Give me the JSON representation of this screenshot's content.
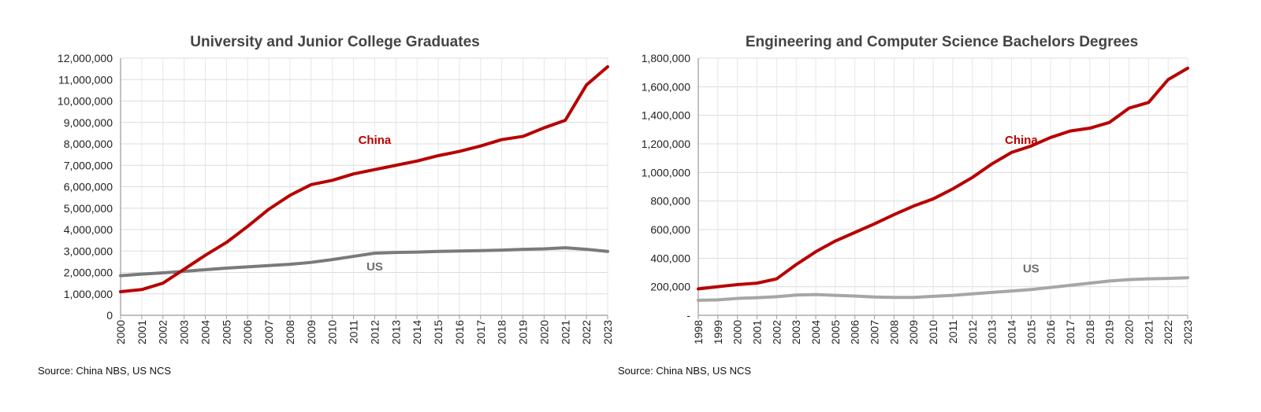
{
  "chart_data": [
    {
      "type": "line",
      "title": "University and Junior College Graduates",
      "xlabel": "",
      "ylabel": "",
      "ylim": [
        0,
        12000000
      ],
      "yticks": [
        "0",
        "1,000,000",
        "2,000,000",
        "3,000,000",
        "4,000,000",
        "5,000,000",
        "6,000,000",
        "7,000,000",
        "8,000,000",
        "9,000,000",
        "10,000,000",
        "11,000,000",
        "12,000,000"
      ],
      "x": [
        "2000",
        "2001",
        "2002",
        "2003",
        "2004",
        "2005",
        "2006",
        "2007",
        "2008",
        "2009",
        "2010",
        "2011",
        "2012",
        "2013",
        "2014",
        "2015",
        "2016",
        "2017",
        "2018",
        "2019",
        "2020",
        "2021",
        "2022",
        "2023"
      ],
      "grid": true,
      "series": [
        {
          "name": "China",
          "color": "#b80000",
          "values": [
            1100000,
            1200000,
            1500000,
            2150000,
            2800000,
            3400000,
            4150000,
            4950000,
            5600000,
            6100000,
            6300000,
            6600000,
            6800000,
            7000000,
            7200000,
            7450000,
            7650000,
            7900000,
            8200000,
            8350000,
            8750000,
            9100000,
            10750000,
            11600000
          ],
          "label_at": "2012",
          "label_value": 8000000
        },
        {
          "name": "US",
          "color": "#7a7a7a",
          "values": [
            1850000,
            1920000,
            1980000,
            2050000,
            2130000,
            2200000,
            2260000,
            2320000,
            2380000,
            2470000,
            2600000,
            2750000,
            2900000,
            2930000,
            2950000,
            2980000,
            3000000,
            3020000,
            3040000,
            3080000,
            3100000,
            3150000,
            3080000,
            2980000
          ],
          "label_at": "2012",
          "label_value": 2100000
        }
      ],
      "source": "Source: China NBS, US NCS"
    },
    {
      "type": "line",
      "title": "Engineering and Computer Science Bachelors Degrees",
      "xlabel": "",
      "ylabel": "",
      "ylim": [
        0,
        1800000
      ],
      "yticks": [
        "-",
        "200,000",
        "400,000",
        "600,000",
        "800,000",
        "1,000,000",
        "1,200,000",
        "1,400,000",
        "1,600,000",
        "1,800,000"
      ],
      "x": [
        "1998",
        "1999",
        "2000",
        "2001",
        "2002",
        "2003",
        "2004",
        "2005",
        "2006",
        "2007",
        "2008",
        "2009",
        "2010",
        "2011",
        "2012",
        "2013",
        "2014",
        "2015",
        "2016",
        "2017",
        "2018",
        "2019",
        "2020",
        "2021",
        "2022",
        "2023"
      ],
      "grid": true,
      "series": [
        {
          "name": "China",
          "color": "#b80000",
          "values": [
            185000,
            200000,
            215000,
            225000,
            255000,
            355000,
            445000,
            520000,
            580000,
            640000,
            705000,
            765000,
            815000,
            885000,
            965000,
            1060000,
            1140000,
            1185000,
            1245000,
            1290000,
            1310000,
            1350000,
            1450000,
            1490000,
            1650000,
            1730000
          ],
          "label_at": "2014.5",
          "label_value": 1200000
        },
        {
          "name": "US",
          "color": "#a6a6a6",
          "values": [
            105000,
            108000,
            118000,
            123000,
            130000,
            142000,
            145000,
            140000,
            135000,
            128000,
            125000,
            125000,
            133000,
            140000,
            150000,
            160000,
            170000,
            180000,
            195000,
            210000,
            225000,
            240000,
            250000,
            255000,
            258000,
            263000
          ],
          "label_at": "2015",
          "label_value": 300000
        }
      ],
      "source": "Source: China NBS, US NCS"
    }
  ]
}
